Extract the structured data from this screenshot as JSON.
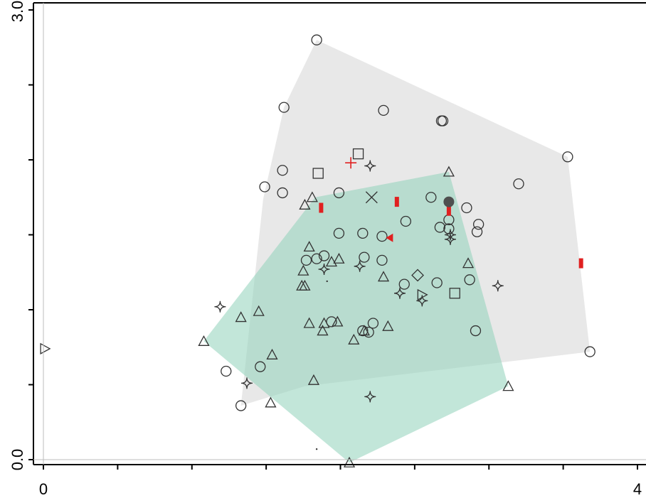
{
  "chart_data": {
    "type": "scatter",
    "title": "",
    "xlabel": "",
    "ylabel": "",
    "xlim": [
      0,
      4
    ],
    "ylim": [
      0,
      3
    ],
    "x_ticks": [
      0,
      4
    ],
    "x_tick_labels": [
      "0",
      "4"
    ],
    "y_ticks": [
      0,
      3
    ],
    "y_tick_labels": [
      "0.0",
      "3.0"
    ],
    "grid": false,
    "colors": {
      "gray_hull": "#d9d9d9",
      "green_hull": "#8fd1b9",
      "marker_stroke": "#333333",
      "red_marker": "#e02020",
      "dark_point": "#4f4f4f"
    },
    "hulls": [
      {
        "color": "#d9d9d9",
        "opacity": 0.6,
        "vertices": [
          [
            1.84,
            2.8
          ],
          [
            1.62,
            2.35
          ],
          [
            1.48,
            1.74
          ],
          [
            1.33,
            0.36
          ],
          [
            1.76,
            0.49
          ],
          [
            3.68,
            0.72
          ],
          [
            3.53,
            2.02
          ]
        ]
      },
      {
        "color": "#8fd1b9",
        "opacity": 0.55,
        "vertices": [
          [
            1.08,
            0.79
          ],
          [
            2.06,
            -0.02
          ],
          [
            3.13,
            0.49
          ],
          [
            2.73,
            1.92
          ],
          [
            1.83,
            1.75
          ]
        ]
      }
    ],
    "series": [
      {
        "marker": "circle",
        "points": [
          [
            1.84,
            2.8
          ],
          [
            1.62,
            2.35
          ],
          [
            2.29,
            2.33
          ],
          [
            2.68,
            2.26
          ],
          [
            2.69,
            2.26
          ],
          [
            3.53,
            2.02
          ],
          [
            1.61,
            1.93
          ],
          [
            1.49,
            1.82
          ],
          [
            1.61,
            1.78
          ],
          [
            1.99,
            1.78
          ],
          [
            2.61,
            1.75
          ],
          [
            3.2,
            1.84
          ],
          [
            2.85,
            1.68
          ],
          [
            2.73,
            1.6
          ],
          [
            2.93,
            1.57
          ],
          [
            2.44,
            1.59
          ],
          [
            2.67,
            1.55
          ],
          [
            2.73,
            1.54
          ],
          [
            1.99,
            1.51
          ],
          [
            2.15,
            1.51
          ],
          [
            2.28,
            1.49
          ],
          [
            2.92,
            1.52
          ],
          [
            1.77,
            1.33
          ],
          [
            1.84,
            1.34
          ],
          [
            1.89,
            1.36
          ],
          [
            2.16,
            1.35
          ],
          [
            2.28,
            1.33
          ],
          [
            2.43,
            1.17
          ],
          [
            2.65,
            1.18
          ],
          [
            2.87,
            1.2
          ],
          [
            1.94,
            0.92
          ],
          [
            2.15,
            0.86
          ],
          [
            2.19,
            0.85
          ],
          [
            2.22,
            0.91
          ],
          [
            2.91,
            0.86
          ],
          [
            3.68,
            0.72
          ],
          [
            1.23,
            0.59
          ],
          [
            1.46,
            0.62
          ],
          [
            1.33,
            0.36
          ]
        ]
      },
      {
        "marker": "triangle",
        "points": [
          [
            2.73,
            1.92
          ],
          [
            1.81,
            1.75
          ],
          [
            1.76,
            1.7
          ],
          [
            1.79,
            1.42
          ],
          [
            1.99,
            1.34
          ],
          [
            2.86,
            1.31
          ],
          [
            1.75,
            1.26
          ],
          [
            1.74,
            1.16
          ],
          [
            1.45,
            0.99
          ],
          [
            1.33,
            0.95
          ],
          [
            1.79,
            0.91
          ],
          [
            1.98,
            0.92
          ],
          [
            1.89,
            0.91
          ],
          [
            1.88,
            0.86
          ],
          [
            2.16,
            0.86
          ],
          [
            2.32,
            0.89
          ],
          [
            2.09,
            0.8
          ],
          [
            1.08,
            0.79
          ],
          [
            1.54,
            0.7
          ],
          [
            1.82,
            0.53
          ],
          [
            1.53,
            0.38
          ],
          [
            3.13,
            0.49
          ],
          [
            2.06,
            -0.02
          ],
          [
            1.94,
            1.32
          ],
          [
            2.29,
            1.22
          ],
          [
            1.76,
            1.16
          ]
        ]
      },
      {
        "marker": "star4",
        "points": [
          [
            2.2,
            1.96
          ],
          [
            2.74,
            1.5
          ],
          [
            2.74,
            1.47
          ],
          [
            2.13,
            1.29
          ],
          [
            1.89,
            1.27
          ],
          [
            3.06,
            1.16
          ],
          [
            2.4,
            1.11
          ],
          [
            2.55,
            1.06
          ],
          [
            1.19,
            1.02
          ],
          [
            1.37,
            0.51
          ],
          [
            2.2,
            0.42
          ]
        ]
      },
      {
        "marker": "square",
        "points": [
          [
            2.12,
            2.04
          ],
          [
            1.85,
            1.91
          ],
          [
            2.77,
            1.11
          ]
        ]
      },
      {
        "marker": "diamond",
        "points": [
          [
            2.52,
            1.23
          ]
        ]
      },
      {
        "marker": "x",
        "points": [
          [
            2.21,
            1.75
          ]
        ]
      },
      {
        "marker": "triangle-right",
        "points": [
          [
            0.01,
            0.74
          ],
          [
            2.55,
            1.1
          ]
        ]
      },
      {
        "marker": "plus",
        "color": "#e02020",
        "points": [
          [
            2.07,
            1.98
          ]
        ]
      },
      {
        "marker": "red-bar",
        "color": "#e02020",
        "points": [
          [
            1.87,
            1.68
          ],
          [
            2.38,
            1.72
          ],
          [
            2.73,
            1.66
          ],
          [
            3.62,
            1.31
          ]
        ]
      },
      {
        "marker": "red-triangle-left",
        "color": "#e02020",
        "points": [
          [
            2.33,
            1.48
          ]
        ]
      },
      {
        "marker": "filled-circle",
        "color": "#4f4f4f",
        "points": [
          [
            2.73,
            1.72
          ]
        ]
      },
      {
        "marker": "dot",
        "color": "#333333",
        "points": [
          [
            1.84,
            0.07
          ],
          [
            1.91,
            1.19
          ]
        ]
      }
    ]
  }
}
